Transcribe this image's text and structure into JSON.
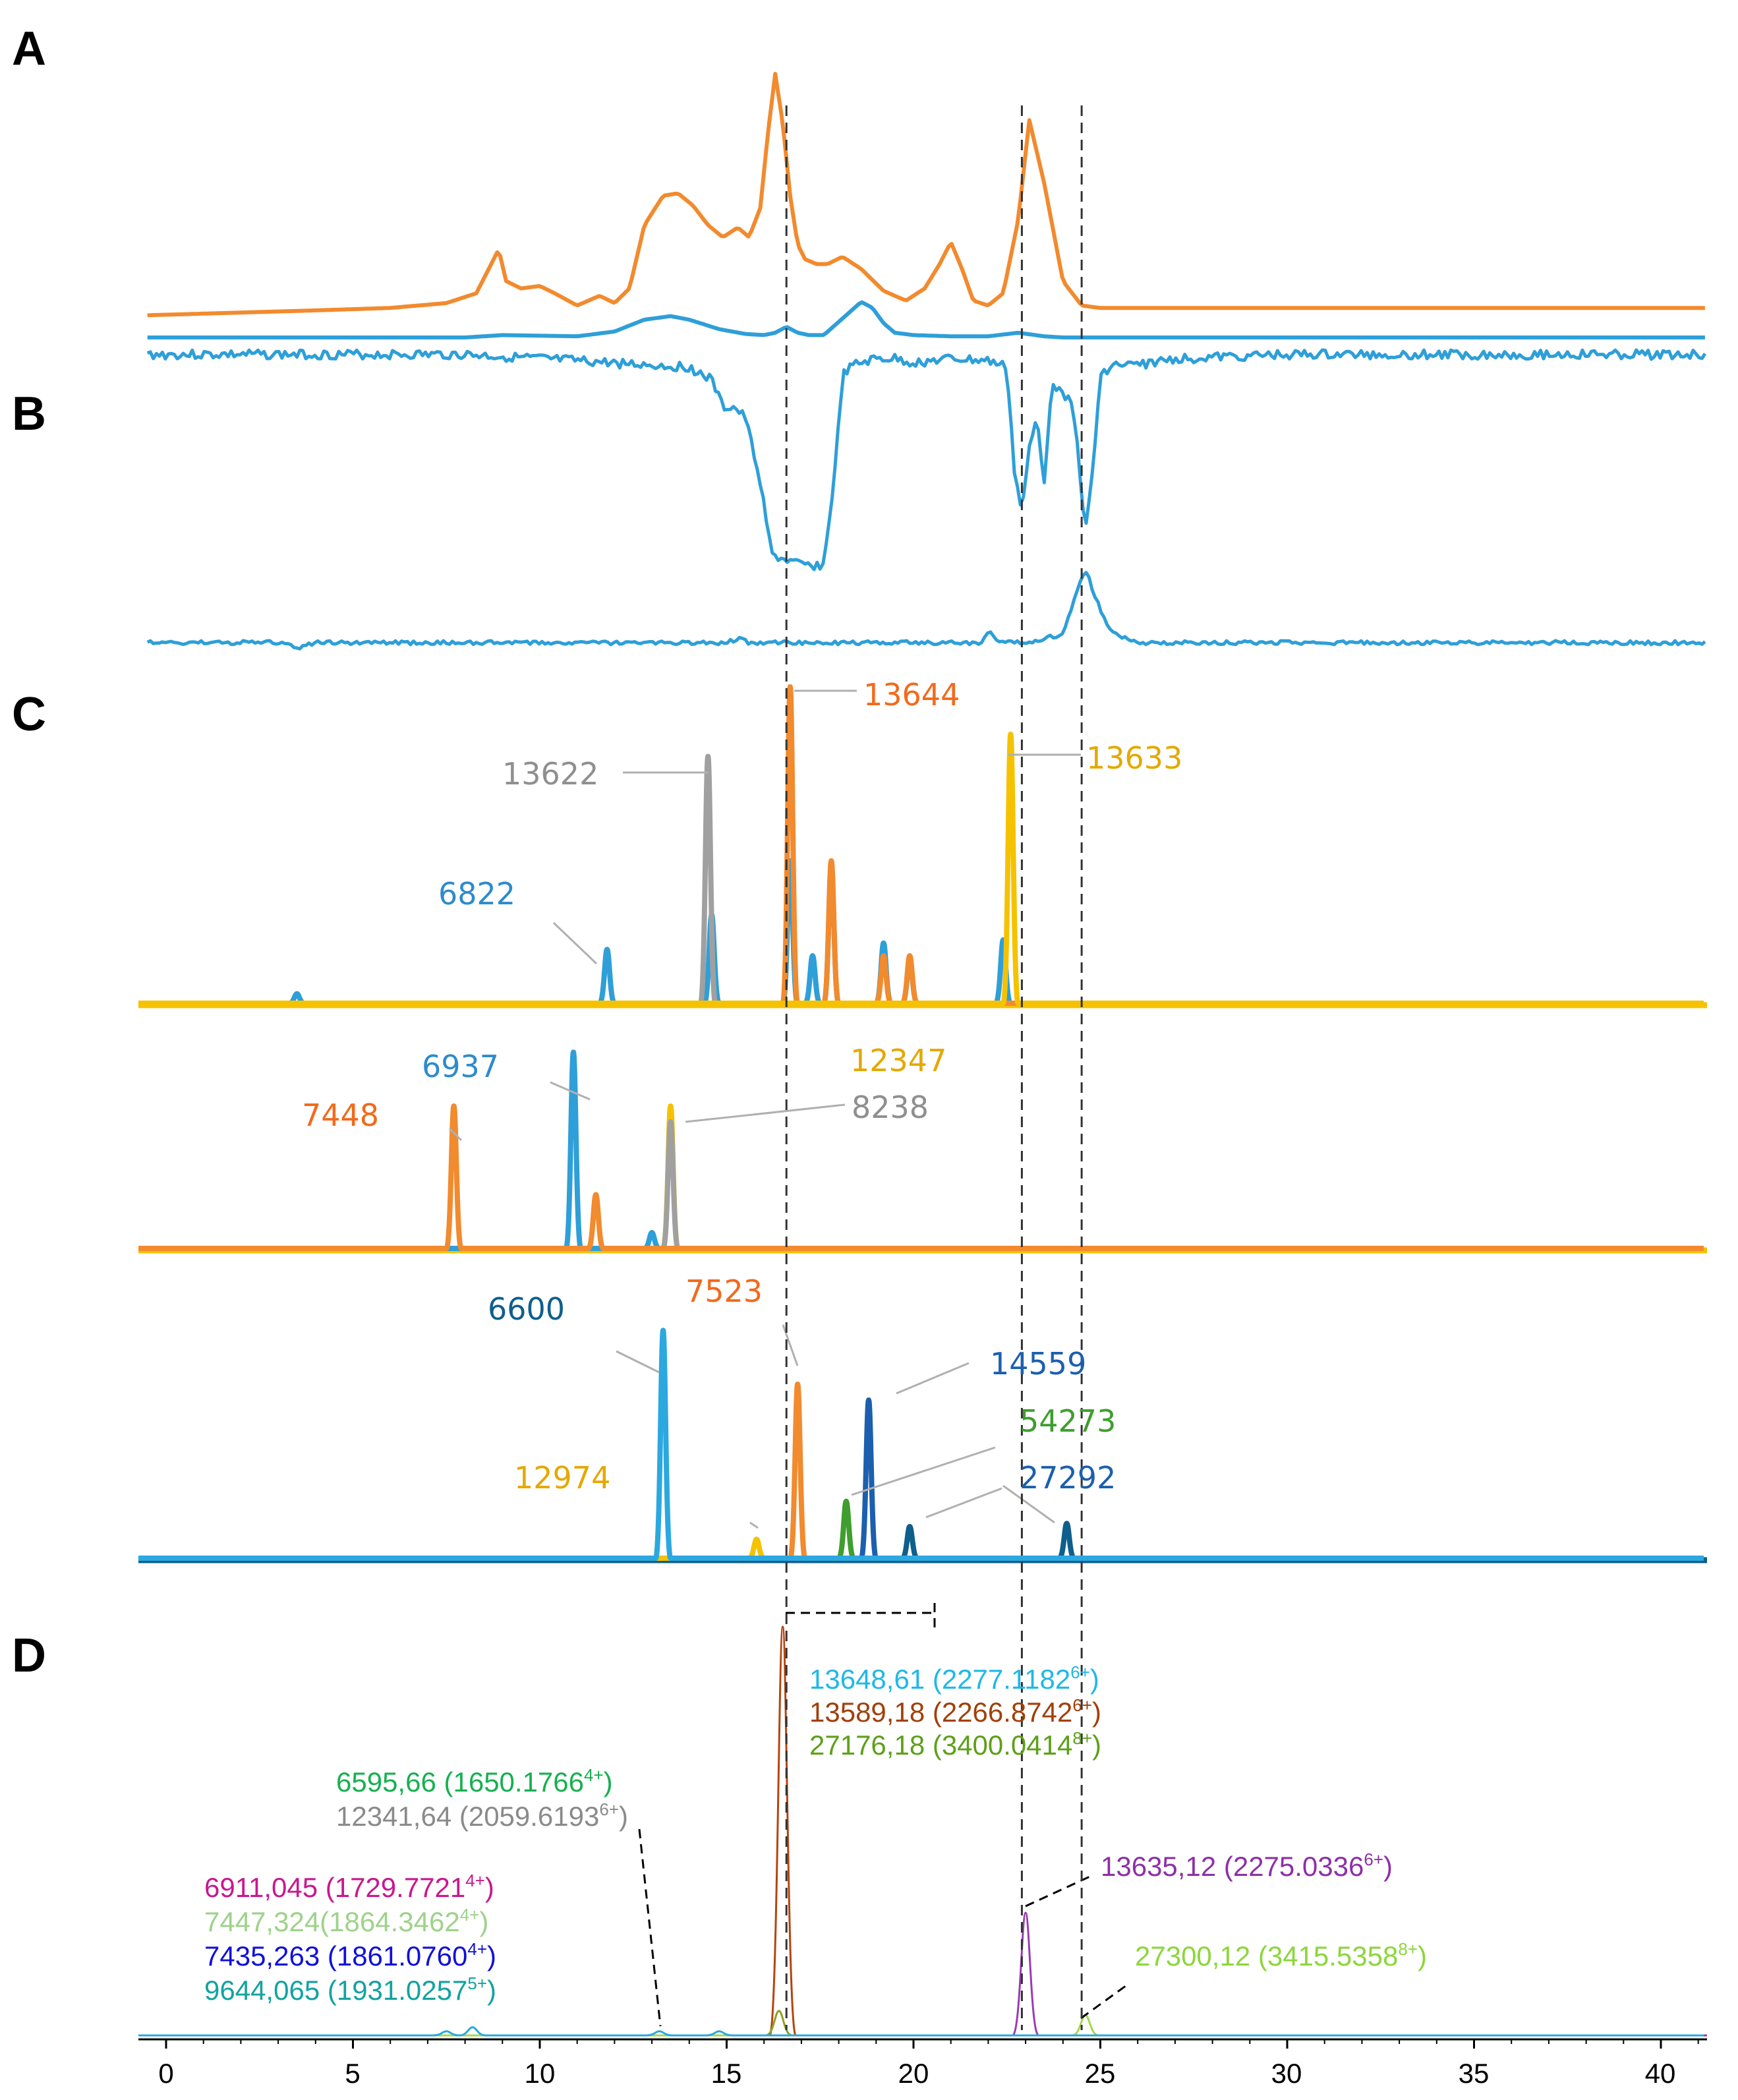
{
  "panels": [
    "A",
    "B",
    "C",
    "D"
  ],
  "colors": {
    "orange": "#F28A2E",
    "blue": "#2E9FD8",
    "gray": "#A0A0A0",
    "gold": "#F5C200",
    "navy": "#0E5F8C",
    "darkblue": "#1C5FAE",
    "green": "#3E9E2E",
    "lightblue": "#2BA8E0",
    "black": "#000000"
  },
  "chart_data": [
    {
      "panel": "A",
      "type": "line",
      "xlabel": "",
      "ylabel": "",
      "xlim": [
        -0.5,
        41.3
      ],
      "series": [
        {
          "name": "orange trace",
          "color": "#F28A2E",
          "x": [
            -0.5,
            4,
            6,
            7.5,
            8.3,
            8.7,
            8.9,
            9.1,
            9.5,
            10,
            10.4,
            11,
            11.6,
            12,
            12.4,
            12.8,
            13.3,
            13.7,
            14.1,
            14.5,
            14.9,
            15.3,
            15.6,
            15.9,
            16.1,
            16.3,
            16.5,
            16.7,
            16.9,
            17.1,
            17.4,
            17.7,
            18.1,
            18.6,
            19.2,
            19.8,
            20.3,
            20.7,
            21,
            21.3,
            21.6,
            22,
            22.4,
            22.8,
            23.1,
            23.5,
            24,
            24.5,
            25,
            30,
            41.3
          ],
          "y": [
            0.01,
            0.03,
            0.04,
            0.06,
            0.1,
            0.22,
            0.28,
            0.15,
            0.12,
            0.13,
            0.1,
            0.05,
            0.09,
            0.06,
            0.12,
            0.38,
            0.5,
            0.51,
            0.46,
            0.38,
            0.33,
            0.37,
            0.33,
            0.45,
            0.75,
            1.0,
            0.8,
            0.5,
            0.3,
            0.24,
            0.22,
            0.22,
            0.25,
            0.2,
            0.11,
            0.07,
            0.12,
            0.22,
            0.31,
            0.2,
            0.07,
            0.05,
            0.1,
            0.4,
            0.81,
            0.55,
            0.15,
            0.05,
            0.04,
            0.04,
            0.04
          ]
        },
        {
          "name": "blue trace",
          "color": "#2E9FD8",
          "x": [
            -0.5,
            8,
            9,
            11,
            12,
            12.8,
            13.5,
            14,
            14.8,
            15.5,
            16,
            16.3,
            16.6,
            16.9,
            17.2,
            17.6,
            18.1,
            18.6,
            18.9,
            19.2,
            19.5,
            20,
            21,
            22,
            22.8,
            23.5,
            24,
            30,
            41.3
          ],
          "y": [
            0,
            0,
            0.02,
            0.01,
            0.05,
            0.15,
            0.18,
            0.15,
            0.07,
            0.03,
            0.02,
            0.04,
            0.09,
            0.04,
            0.02,
            0.02,
            0.16,
            0.3,
            0.25,
            0.12,
            0.04,
            0.02,
            0.01,
            0.01,
            0.04,
            0.01,
            0,
            0,
            0
          ]
        }
      ]
    },
    {
      "panel": "B",
      "type": "line",
      "xlabel": "",
      "ylabel": "",
      "xlim": [
        -0.5,
        41.3
      ],
      "series": [
        {
          "name": "blue trace (upper)",
          "color": "#2E9FD8",
          "x": [
            -0.5,
            8,
            14,
            14.6,
            14.9,
            15.2,
            15.5,
            15.9,
            16.2,
            17,
            17.6,
            17.9,
            18.1,
            18.4,
            19,
            19.5,
            20,
            21,
            22,
            22.5,
            22.7,
            22.9,
            23.1,
            23.3,
            23.5,
            23.7,
            24,
            24.2,
            24.4,
            24.6,
            24.8,
            25,
            25.3,
            26,
            27,
            30,
            41.3
          ],
          "y": [
            0,
            0,
            -0.06,
            -0.12,
            -0.25,
            -0.25,
            -0.3,
            -0.6,
            -0.95,
            -1.0,
            -1.0,
            -0.55,
            -0.1,
            -0.05,
            -0.02,
            -0.02,
            -0.04,
            -0.02,
            -0.03,
            -0.06,
            -0.55,
            -0.75,
            -0.45,
            -0.3,
            -0.6,
            -0.12,
            -0.2,
            -0.18,
            -0.45,
            -0.85,
            -0.55,
            -0.1,
            -0.05,
            -0.05,
            -0.02,
            0,
            0
          ]
        },
        {
          "name": "blue trace (lower)",
          "color": "#2E9FD8",
          "x": [
            -0.5,
            3,
            3.5,
            4,
            15,
            15.3,
            15.6,
            21,
            21.8,
            22,
            22.3,
            23,
            24,
            24.3,
            24.6,
            24.9,
            25.2,
            25.6,
            26,
            41.3
          ],
          "y": [
            0,
            0,
            -0.05,
            0,
            0,
            0.04,
            0,
            0,
            0,
            0.12,
            0,
            0,
            0.08,
            0.4,
            0.7,
            0.4,
            0.15,
            0.05,
            0,
            0
          ]
        }
      ]
    },
    {
      "panel": "C",
      "type": "line",
      "xlabel": "",
      "ylabel": "",
      "subplots": [
        {
          "name": "C1",
          "series": [
            {
              "name": "gold trace",
              "color": "#F5C200",
              "peaks": [
                {
                  "x": 22.6,
                  "h": 0.85,
                  "label": "13633"
                }
              ]
            },
            {
              "name": "orange trace",
              "color": "#F28A2E",
              "peaks": [
                {
                  "x": 16.7,
                  "h": 1.0,
                  "label": "13644"
                },
                {
                  "x": 17.8,
                  "h": 0.45
                },
                {
                  "x": 19.2,
                  "h": 0.15
                },
                {
                  "x": 19.9,
                  "h": 0.15
                }
              ]
            },
            {
              "name": "gray trace",
              "color": "#A0A0A0",
              "peaks": [
                {
                  "x": 14.5,
                  "h": 0.78,
                  "label": "13622"
                }
              ]
            },
            {
              "name": "blue trace",
              "color": "#2E9FD8",
              "peaks": [
                {
                  "x": 3.5,
                  "h": 0.03
                },
                {
                  "x": 11.8,
                  "h": 0.17,
                  "label": "6822"
                },
                {
                  "x": 14.6,
                  "h": 0.28
                },
                {
                  "x": 16.7,
                  "h": 0.45
                },
                {
                  "x": 17.3,
                  "h": 0.15
                },
                {
                  "x": 17.8,
                  "h": 0.44
                },
                {
                  "x": 19.2,
                  "h": 0.19
                },
                {
                  "x": 19.9,
                  "h": 0.14
                },
                {
                  "x": 22.4,
                  "h": 0.2
                }
              ]
            }
          ]
        },
        {
          "name": "C2",
          "series": [
            {
              "name": "orange trace",
              "color": "#F28A2E",
              "peaks": [
                {
                  "x": 7.7,
                  "h": 0.45,
                  "label": "7448"
                },
                {
                  "x": 11.5,
                  "h": 0.17
                }
              ]
            },
            {
              "name": "blue trace",
              "color": "#2E9FD8",
              "peaks": [
                {
                  "x": 10.9,
                  "h": 0.62,
                  "label": "6937"
                },
                {
                  "x": 13.0,
                  "h": 0.05
                }
              ]
            },
            {
              "name": "gray trace",
              "color": "#A0A0A0",
              "peaks": [
                {
                  "x": 13.5,
                  "h": 0.4,
                  "label": "8238"
                }
              ]
            },
            {
              "name": "gold trace",
              "color": "#F5C200",
              "peaks": [
                {
                  "x": 13.5,
                  "h": 0.45,
                  "label": "12347"
                }
              ]
            }
          ]
        },
        {
          "name": "C3",
          "series": [
            {
              "name": "light blue trace",
              "color": "#2BA8E0",
              "peaks": [
                {
                  "x": 13.3,
                  "h": 0.72,
                  "label": "6600"
                }
              ]
            },
            {
              "name": "gold trace",
              "color": "#F5C200",
              "peaks": [
                {
                  "x": 15.8,
                  "h": 0.06,
                  "label": "12974"
                }
              ]
            },
            {
              "name": "orange trace",
              "color": "#F28A2E",
              "peaks": [
                {
                  "x": 16.9,
                  "h": 0.55,
                  "label": "7523"
                }
              ]
            },
            {
              "name": "green trace",
              "color": "#3E9E2E",
              "peaks": [
                {
                  "x": 18.2,
                  "h": 0.18,
                  "label": "54273"
                }
              ]
            },
            {
              "name": "dark blue trace",
              "color": "#1C5FAE",
              "peaks": [
                {
                  "x": 18.8,
                  "h": 0.5,
                  "label": "14559"
                }
              ]
            },
            {
              "name": "navy trace",
              "color": "#0E5F8C",
              "peaks": [
                {
                  "x": 19.9,
                  "h": 0.1
                },
                {
                  "x": 24.1,
                  "h": 0.11,
                  "label": "27292"
                }
              ]
            }
          ]
        }
      ]
    },
    {
      "panel": "D",
      "type": "line",
      "xlabel": "",
      "ylabel": "",
      "xlim": [
        -0.5,
        41.3
      ],
      "xticks": [
        0,
        5,
        10,
        15,
        20,
        25,
        30,
        35,
        40
      ],
      "series": [
        {
          "name": "brown trace",
          "color": "#B5440F",
          "peaks": [
            {
              "x": 16.5,
              "h": 1.0
            }
          ]
        },
        {
          "name": "olive trace",
          "color": "#8DA01F",
          "peaks": [
            {
              "x": 16.4,
              "h": 0.06
            }
          ]
        },
        {
          "name": "purple trace",
          "color": "#9B3BB5",
          "peaks": [
            {
              "x": 23.0,
              "h": 0.3
            }
          ]
        },
        {
          "name": "lime trace",
          "color": "#A7D84E",
          "peaks": [
            {
              "x": 24.6,
              "h": 0.05
            }
          ]
        },
        {
          "name": "minor traces",
          "color": "#2BA8E0",
          "peaks": [
            {
              "x": 7.5,
              "h": 0.01
            },
            {
              "x": 8.2,
              "h": 0.02
            },
            {
              "x": 13.2,
              "h": 0.01
            },
            {
              "x": 14.8,
              "h": 0.01
            }
          ]
        }
      ]
    }
  ],
  "annotations_c": {
    "c1": [
      {
        "text": "13644",
        "color": "#F26A1B"
      },
      {
        "text": "13633",
        "color": "#E5A800"
      },
      {
        "text": "13622",
        "color": "#8F8F8F"
      },
      {
        "text": "6822",
        "color": "#2E8BCC"
      }
    ],
    "c2": [
      {
        "text": "6937",
        "color": "#2E8BCC"
      },
      {
        "text": "7448",
        "color": "#F26A1B"
      },
      {
        "text": "12347",
        "color": "#E5A800"
      },
      {
        "text": "8238",
        "color": "#8F8F8F"
      }
    ],
    "c3": [
      {
        "text": "6600",
        "color": "#0E5F8C"
      },
      {
        "text": "7523",
        "color": "#F26A1B"
      },
      {
        "text": "14559",
        "color": "#1C5FAE"
      },
      {
        "text": "54273",
        "color": "#3E9E2E"
      },
      {
        "text": "12974",
        "color": "#E5A800"
      },
      {
        "text": "27292",
        "color": "#1C5FAE"
      }
    ]
  },
  "annotations_d": [
    {
      "main": "13648,61 (2277.1182",
      "charge": "6+",
      "close": ")",
      "color": "#1EB8E8"
    },
    {
      "main": "13589,18 (2266.8742",
      "charge": "6+",
      "close": ")",
      "color": "#A0400A"
    },
    {
      "main": "27176,18 (3400.0414",
      "charge": "8+",
      "close": ")",
      "color": "#5EA01A"
    },
    {
      "main": "6595,66 (1650.1766",
      "charge": "4+",
      "close": ")",
      "color": "#16B050"
    },
    {
      "main": "12341,64 (2059.6193",
      "charge": "6+",
      "close": ")",
      "color": "#8A8A8A"
    },
    {
      "main": "13635,12 (2275.0336",
      "charge": "6+",
      "close": ")",
      "color": "#8E2FA8"
    },
    {
      "main": "6911,045 (1729.7721",
      "charge": "4+",
      "close": ")",
      "color": "#C8188E"
    },
    {
      "main": "7447,324(1864.3462",
      "charge": "4+",
      "close": ")",
      "color": "#9ED28A"
    },
    {
      "main": "7435,263 (1861.0760",
      "charge": "4+",
      "close": ")",
      "color": "#1010D8"
    },
    {
      "main": "9644,065 (1931.0257",
      "charge": "5+",
      "close": ")",
      "color": "#12A3A0"
    },
    {
      "main": "27300,12 (3415.5358",
      "charge": "8+",
      "close": ")",
      "color": "#8CD63A"
    }
  ],
  "x_axis": {
    "ticks": [
      "0",
      "5",
      "10",
      "15",
      "20",
      "25",
      "30",
      "35",
      "40"
    ]
  }
}
